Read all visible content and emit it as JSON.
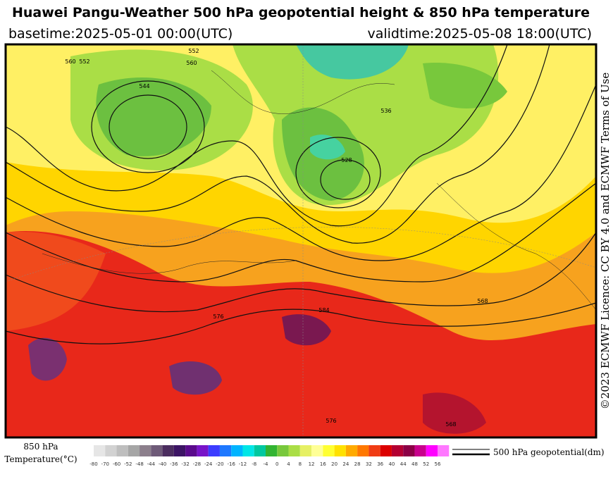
{
  "header": {
    "title": "Huawei Pangu-Weather 500 hPa geopotential height & 850 hPa temperature",
    "basetime": "basetime:2025-05-01 00:00(UTC)",
    "validtime": "validtime:2025-05-08 18:00(UTC)"
  },
  "credit": "©2023 ECMWF Licence: CC BY 4.0 and ECMWF Terms of Use",
  "map": {
    "contour_labels": [
      "560",
      "552",
      "544",
      "528",
      "536",
      "552",
      "560",
      "568",
      "576",
      "584",
      "576",
      "568"
    ]
  },
  "legend": {
    "temperature_title": "850 hPa",
    "temperature_unit": "Temperature(°C)",
    "ticks": [
      -80,
      -70,
      -60,
      -52,
      -48,
      -44,
      -40,
      -36,
      -32,
      -28,
      -24,
      -20,
      -16,
      -12,
      -8,
      -4,
      0,
      4,
      8,
      12,
      16,
      20,
      24,
      28,
      32,
      36,
      40,
      44,
      48,
      52,
      56
    ],
    "colors": [
      "#e6e6e6",
      "#d2d2d2",
      "#bebebe",
      "#a6a6a6",
      "#8c7f8c",
      "#6e5a78",
      "#4b2d5f",
      "#3c1464",
      "#5a0a8c",
      "#7814c8",
      "#3c3cff",
      "#1e78ff",
      "#00b4ff",
      "#00e6e6",
      "#00c8a0",
      "#32b432",
      "#78c83c",
      "#aade46",
      "#e6f064",
      "#ffff96",
      "#ffff32",
      "#ffe100",
      "#ffaa00",
      "#ff7800",
      "#f03c14",
      "#dc0000",
      "#b40032",
      "#8c0046",
      "#c8008c",
      "#ff00ff",
      "#ff78ff"
    ],
    "contour_label": "500 hPa geopotential(dm)"
  }
}
